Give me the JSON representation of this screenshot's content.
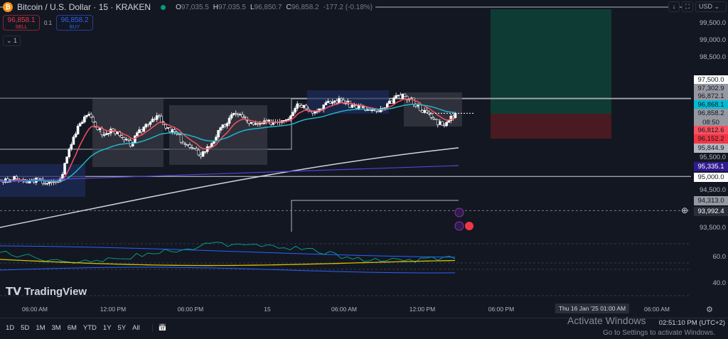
{
  "header": {
    "symbol": "Bitcoin / U.S. Dollar · 15 · KRAKEN",
    "open": "97,035.5",
    "high": "97,035.5",
    "low": "96,850.7",
    "close": "96,858.2",
    "change": "-177.2 (-0.18%)",
    "labels": {
      "o": "O",
      "h": "H",
      "l": "L",
      "c": "C"
    }
  },
  "trade": {
    "sell_price": "96,858.1",
    "sell_label": "SELL",
    "qty": "0.1",
    "buy_price": "96,858.2",
    "buy_label": "BUY",
    "collapse": "⌄ 1"
  },
  "toolbar": {
    "currency": "USD"
  },
  "price_axis": {
    "labels": [
      "99,500.0",
      "99,000.0",
      "98,500.0",
      "95,500.0",
      "94,500.0",
      "93,500.0"
    ],
    "tags": [
      {
        "v": "97,500.0",
        "bg": "#ffffff"
      },
      {
        "v": "97,302.9",
        "bg": "#9598a1"
      },
      {
        "v": "96,872.1",
        "bg": "#9598a1"
      },
      {
        "v": "96,868.1",
        "bg": "#00bcd4"
      },
      {
        "v": "96,858.2",
        "bg": "#9598a1"
      },
      {
        "v": "08:50",
        "bg": "#9598a1"
      },
      {
        "v": "96,812.6",
        "bg": "#f7525f"
      },
      {
        "v": "96,152.2",
        "bg": "#f23645"
      },
      {
        "v": "95,844.9",
        "bg": "#b2b5be"
      },
      {
        "v": "95,335.1",
        "bg": "#311b92"
      },
      {
        "v": "95,000.0",
        "bg": "#ffffff"
      },
      {
        "v": "94,313.0",
        "bg": "#9598a1"
      },
      {
        "v": "93,992.4",
        "bg": "#2a2e39"
      }
    ]
  },
  "osc_axis": [
    "60.0",
    "40.0"
  ],
  "time_axis": [
    "06:00 AM",
    "12:00 PM",
    "06:00 PM",
    "15",
    "06:00 AM",
    "12:00 PM",
    "06:00 PM",
    "Thu 16 Jan '25  01:00 AM",
    "06:00 AM"
  ],
  "ranges": [
    "1D",
    "5D",
    "1M",
    "3M",
    "6M",
    "YTD",
    "1Y",
    "5Y",
    "All"
  ],
  "logo": "TradingView",
  "clock": "02:51:10 PM (UTC+2)",
  "watermark": {
    "title": "Activate Windows",
    "sub": "Go to Settings to activate Windows."
  },
  "chart_data": {
    "type": "candlestick",
    "interval": "15m",
    "hourly_closes": [
      94900,
      94850,
      94950,
      94800,
      94900,
      94850,
      94800,
      94900,
      95800,
      96500,
      96850,
      96500,
      96200,
      96400,
      96100,
      95950,
      96300,
      96600,
      96800,
      96400,
      96300,
      96000,
      95800,
      95650,
      95900,
      96300,
      96600,
      96900,
      96700,
      96500,
      96550,
      96600,
      96650,
      96750,
      97150,
      97050,
      96900,
      97100,
      97200,
      97250,
      97100,
      97050,
      96950,
      96900,
      97000,
      97300,
      97350,
      97250,
      97000,
      96800,
      96600,
      96550,
      96858
    ]
  }
}
